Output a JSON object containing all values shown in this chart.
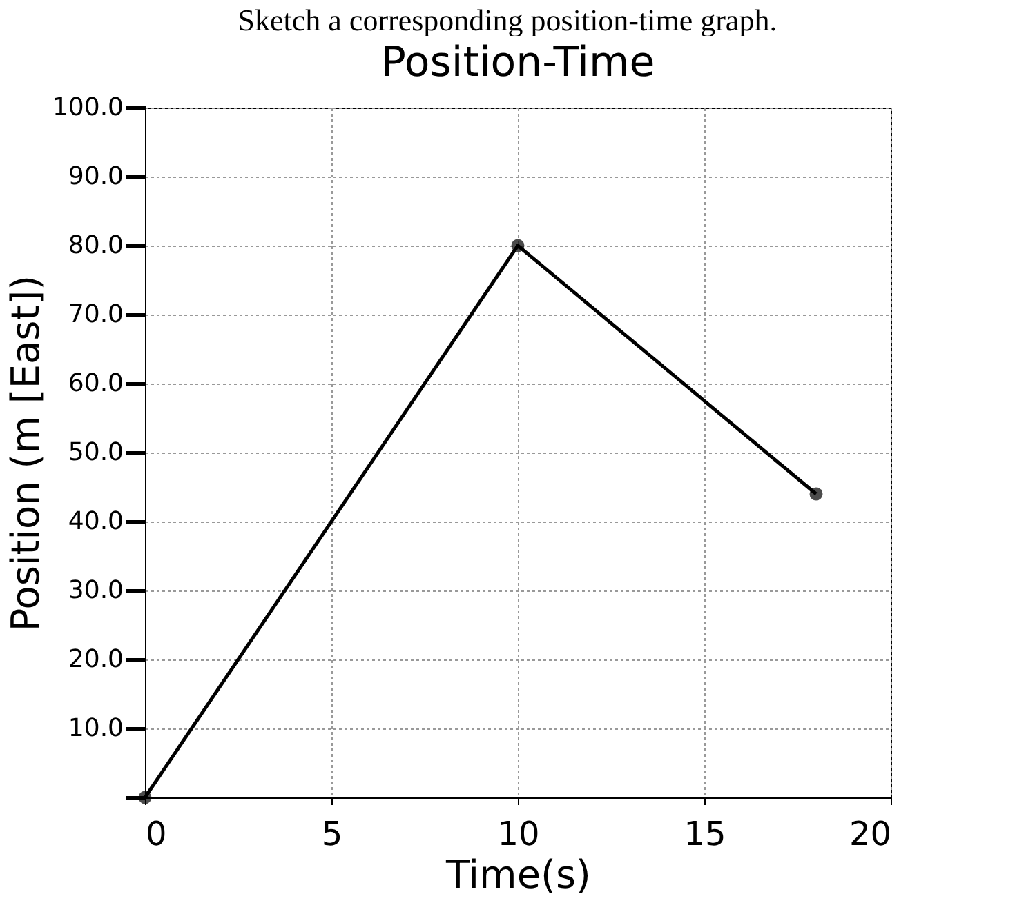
{
  "chart_data": {
    "type": "line",
    "title": "Position-Time",
    "xlabel": "Time(s)",
    "ylabel": "Position (m [East])",
    "annotations": [
      "Sketch a corresponding position-time graph."
    ],
    "x": [
      0,
      10,
      18
    ],
    "series": [
      {
        "color": "#000000",
        "values": [
          0,
          80,
          44
        ]
      }
    ],
    "xlim": [
      0,
      20
    ],
    "ylim": [
      0,
      100
    ],
    "xticks": [
      0,
      5,
      10,
      15,
      20
    ],
    "yticks": [
      {
        "value": 0,
        "label": null
      },
      {
        "value": 10,
        "label": "10.0"
      },
      {
        "value": 20,
        "label": "20.0"
      },
      {
        "value": 30,
        "label": "30.0"
      },
      {
        "value": 40,
        "label": "40.0"
      },
      {
        "value": 50,
        "label": "50.0"
      },
      {
        "value": 60,
        "label": "60.0"
      },
      {
        "value": 70,
        "label": "70.0"
      },
      {
        "value": 80,
        "label": "80.0"
      },
      {
        "value": 90,
        "label": "90.0"
      },
      {
        "value": 100,
        "label": "100.0"
      }
    ],
    "grid": true,
    "marker": "circle",
    "line_style": "solid"
  }
}
